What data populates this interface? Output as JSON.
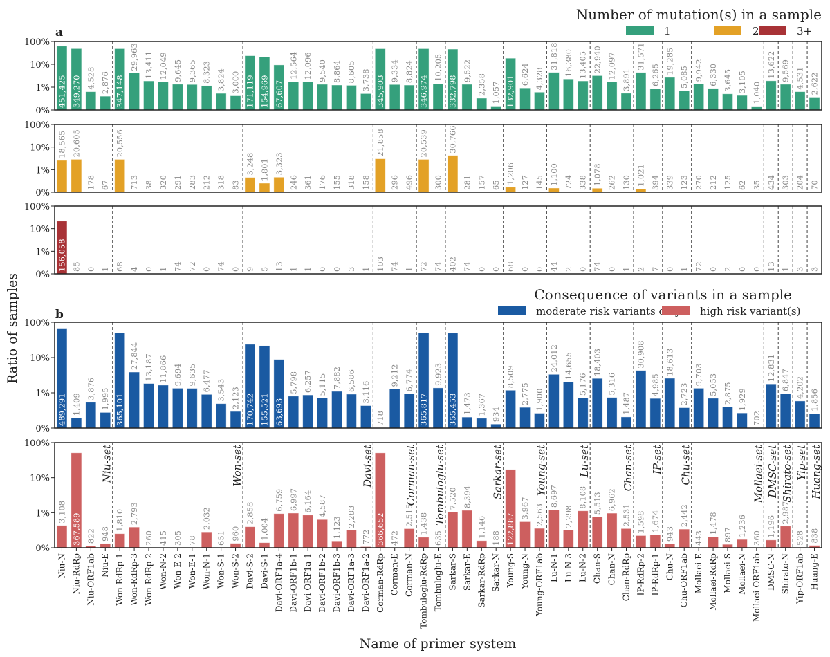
{
  "chart_data": {
    "type": "bar",
    "yscale": "log",
    "ylabel": "Ratio of samples",
    "xlabel": "Name of primer system",
    "ytick_labels": [
      "0%",
      "1%",
      "10%",
      "100%"
    ],
    "grid": false,
    "sets": [
      {
        "label": "Niu-set",
        "primers": [
          "Niu-N",
          "Niu-RdRp",
          "Niu-ORF1ab",
          "Niu-E"
        ]
      },
      {
        "label": "Won-set",
        "primers": [
          "Won-RdRp-1",
          "Won-RdRp-3",
          "Won-RdRp-2",
          "Won-N-2",
          "Won-E-2",
          "Won-E-1",
          "Won-N-1",
          "Won-S-1",
          "Won-S-2"
        ]
      },
      {
        "label": "Davi-set",
        "primers": [
          "Davi-S-2",
          "Davi-S-1",
          "Davi-ORF1a-4",
          "Davi-ORF1b-1",
          "Davi-ORF1a-1",
          "Davi-ORF1b-2",
          "Davi-ORF1b-3",
          "Davi-ORF1a-3",
          "Davi-ORF1a-2"
        ]
      },
      {
        "label": "Corman-set",
        "primers": [
          "Corman-RdRp",
          "Corman-E",
          "Corman-N"
        ]
      },
      {
        "label": "Tombuloglu-set",
        "primers": [
          "Tombuloglu-RdRp",
          "Tombuloglu-E"
        ]
      },
      {
        "label": "Sarkar-set",
        "primers": [
          "Sarkar-S",
          "Sarkar-E",
          "Sarkar-RdRp",
          "Sarkar-N"
        ]
      },
      {
        "label": "Young-set",
        "primers": [
          "Young-S",
          "Young-N",
          "Young-ORF1ab"
        ]
      },
      {
        "label": "Lu-set",
        "primers": [
          "Lu-N-1",
          "Lu-N-3",
          "Lu-N-2"
        ]
      },
      {
        "label": "Chan-set",
        "primers": [
          "Chan-S",
          "Chan-N",
          "Chan-RdRp"
        ]
      },
      {
        "label": "IP-set",
        "primers": [
          "IP-RdRp-2",
          "IP-RdRp-1"
        ]
      },
      {
        "label": "Chu-set",
        "primers": [
          "Chu-N",
          "Chu-ORF1ab"
        ]
      },
      {
        "label": "Mollaei-set",
        "primers": [
          "Mollaei-E",
          "Mollaei-RdRp",
          "Mollaei-S",
          "Mollaei-N",
          "Mollaei-ORF1ab"
        ]
      },
      {
        "label": "DMSC-set",
        "primers": [
          "DMSC-N"
        ]
      },
      {
        "label": "Shirato-set",
        "primers": [
          "Shirato-N"
        ]
      },
      {
        "label": "Yip-set",
        "primers": [
          "Yip-ORF1ab"
        ]
      },
      {
        "label": "Huang-set",
        "primers": [
          "Huang-E"
        ]
      }
    ],
    "groups": [
      {
        "panel": "a",
        "legend_title": "Number of mutation(s) in a sample",
        "series": [
          {
            "name": "1",
            "color": "#35a07c",
            "values": [
              451425,
              349270,
              4528,
              2876,
              347148,
              29963,
              13411,
              12049,
              9645,
              9365,
              8323,
              3824,
              3000,
              171119,
              154969,
              67607,
              12564,
              12096,
              9540,
              8864,
              8605,
              3738,
              345903,
              9334,
              8824,
              346974,
              10205,
              332798,
              9522,
              2358,
              1057,
              132901,
              6624,
              4328,
              31818,
              16380,
              13405,
              22940,
              12097,
              3891,
              31571,
              6265,
              19285,
              5085,
              9942,
              6330,
              3645,
              3105,
              1040,
              13622,
              9569,
              4531,
              2622
            ]
          },
          {
            "name": "2",
            "color": "#e3a126",
            "values": [
              18565,
              20605,
              178,
              67,
              20556,
              713,
              38,
              320,
              291,
              283,
              212,
              318,
              83,
              3248,
              1801,
              3323,
              246,
              361,
              176,
              155,
              318,
              158,
              21858,
              296,
              496,
              20539,
              300,
              30766,
              281,
              157,
              65,
              1206,
              127,
              145,
              1100,
              724,
              338,
              1078,
              262,
              130,
              1021,
              394,
              339,
              123,
              270,
              212,
              125,
              62,
              35,
              434,
              303,
              204,
              70
            ]
          },
          {
            "name": "3+",
            "color": "#a83236",
            "values": [
              156058,
              85,
              0,
              1,
              68,
              4,
              0,
              1,
              74,
              72,
              0,
              74,
              0,
              9,
              5,
              13,
              1,
              1,
              0,
              0,
              3,
              1,
              103,
              74,
              1,
              72,
              74,
              402,
              74,
              0,
              0,
              68,
              0,
              0,
              44,
              2,
              0,
              74,
              0,
              1,
              2,
              7,
              0,
              1,
              72,
              0,
              2,
              0,
              0,
              13,
              1,
              3,
              3
            ]
          }
        ]
      },
      {
        "panel": "b",
        "legend_title": "Consequence of variants in a sample",
        "series": [
          {
            "name": "moderate risk variants only",
            "color": "#1a5aa2",
            "values": [
              489291,
              1409,
              3876,
              1995,
              365101,
              27844,
              13187,
              11866,
              9694,
              9635,
              6477,
              3543,
              2123,
              170742,
              155521,
              63693,
              5798,
              6257,
              5115,
              7882,
              6586,
              3116,
              718,
              9212,
              6774,
              365817,
              9923,
              355453,
              1473,
              1367,
              934,
              8509,
              2775,
              1900,
              24012,
              14655,
              5176,
              18403,
              5316,
              1487,
              30908,
              4985,
              18613,
              2723,
              9703,
              5053,
              2875,
              1929,
              702,
              12831,
              6847,
              4202,
              1856
            ]
          },
          {
            "name": "high risk variant(s)",
            "color": "#cd5f5f",
            "values": [
              3108,
              367589,
              822,
              948,
              1810,
              2793,
              260,
              415,
              305,
              78,
              2032,
              651,
              960,
              2858,
              1004,
              6759,
              6997,
              6164,
              4587,
              1123,
              2283,
              772,
              366652,
              472,
              2515,
              1438,
              635,
              7520,
              8394,
              1146,
              188,
              122887,
              3967,
              2563,
              8697,
              2298,
              8108,
              5513,
              6962,
              2531,
              1598,
              1674,
              943,
              2442,
              443,
              1478,
              897,
              1236,
              360,
              1196,
              2987,
              528,
              838
            ]
          }
        ]
      }
    ]
  }
}
